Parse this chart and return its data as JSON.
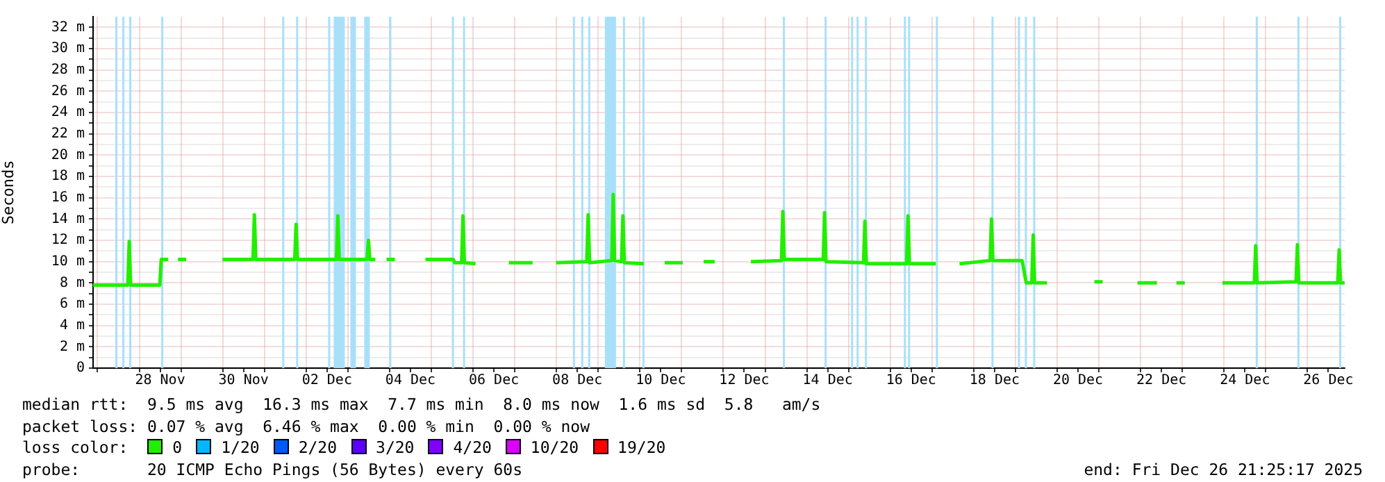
{
  "chart_data": {
    "type": "line",
    "ylabel": "Seconds",
    "xlim": [
      "--11-26T21:25",
      "--12-26T21:25"
    ],
    "ylim": [
      0,
      33
    ],
    "xticks": [
      {
        "value": "--11-27",
        "label": null
      },
      {
        "value": "--11-28",
        "label": null
      },
      {
        "value": "--11-28T12:00",
        "label": "28 Nov"
      },
      {
        "value": "--11-29",
        "label": null
      },
      {
        "value": "--11-30",
        "label": null
      },
      {
        "value": "--11-30T12:00",
        "label": "30 Nov"
      },
      {
        "value": "--12-01",
        "label": null
      },
      {
        "value": "--12-02",
        "label": null
      },
      {
        "value": "--12-02T12:00",
        "label": "02 Dec"
      },
      {
        "value": "--12-03",
        "label": null
      },
      {
        "value": "--12-04",
        "label": null
      },
      {
        "value": "--12-04T12:00",
        "label": "04 Dec"
      },
      {
        "value": "--12-05",
        "label": null
      },
      {
        "value": "--12-06",
        "label": null
      },
      {
        "value": "--12-06T12:00",
        "label": "06 Dec"
      },
      {
        "value": "--12-07",
        "label": null
      },
      {
        "value": "--12-08",
        "label": null
      },
      {
        "value": "--12-08T12:00",
        "label": "08 Dec"
      },
      {
        "value": "--12-09",
        "label": null
      },
      {
        "value": "--12-10",
        "label": null
      },
      {
        "value": "--12-10T12:00",
        "label": "10 Dec"
      },
      {
        "value": "--12-11",
        "label": null
      },
      {
        "value": "--12-12",
        "label": null
      },
      {
        "value": "--12-12T12:00",
        "label": "12 Dec"
      },
      {
        "value": "--12-13",
        "label": null
      },
      {
        "value": "--12-14",
        "label": null
      },
      {
        "value": "--12-14T12:00",
        "label": "14 Dec"
      },
      {
        "value": "--12-15",
        "label": null
      },
      {
        "value": "--12-16",
        "label": null
      },
      {
        "value": "--12-16T12:00",
        "label": "16 Dec"
      },
      {
        "value": "--12-17",
        "label": null
      },
      {
        "value": "--12-18",
        "label": null
      },
      {
        "value": "--12-18T12:00",
        "label": "18 Dec"
      },
      {
        "value": "--12-19",
        "label": null
      },
      {
        "value": "--12-20",
        "label": null
      },
      {
        "value": "--12-20T12:00",
        "label": "20 Dec"
      },
      {
        "value": "--12-21",
        "label": null
      },
      {
        "value": "--12-22",
        "label": null
      },
      {
        "value": "--12-22T12:00",
        "label": "22 Dec"
      },
      {
        "value": "--12-23",
        "label": null
      },
      {
        "value": "--12-24",
        "label": null
      },
      {
        "value": "--12-24T12:00",
        "label": "24 Dec"
      },
      {
        "value": "--12-25",
        "label": null
      },
      {
        "value": "--12-26",
        "label": null
      },
      {
        "value": "--12-26T12:00",
        "label": "26 Dec"
      }
    ],
    "yticks": [
      0,
      {
        "value": 1,
        "label": null
      },
      {
        "value": 2,
        "label": "2 m"
      },
      {
        "value": 3,
        "label": null
      },
      {
        "value": 4,
        "label": "4 m"
      },
      {
        "value": 5,
        "label": null
      },
      {
        "value": 6,
        "label": "6 m"
      },
      {
        "value": 7,
        "label": null
      },
      {
        "value": 8,
        "label": "8 m"
      },
      {
        "value": 9,
        "label": null
      },
      {
        "value": 10,
        "label": "10 m"
      },
      {
        "value": 11,
        "label": null
      },
      {
        "value": 12,
        "label": "12 m"
      },
      {
        "value": 13,
        "label": null
      },
      {
        "value": 14,
        "label": "14 m"
      },
      {
        "value": 15,
        "label": null
      },
      {
        "value": 16,
        "label": "16 m"
      },
      {
        "value": 17,
        "label": null
      },
      {
        "value": 18,
        "label": "18 m"
      },
      {
        "value": 19,
        "label": null
      },
      {
        "value": 20,
        "label": "20 m"
      },
      {
        "value": 21,
        "label": null
      },
      {
        "value": 22,
        "label": "22 m"
      },
      {
        "value": 23,
        "label": null
      },
      {
        "value": 24,
        "label": "24 m"
      },
      {
        "value": 25,
        "label": null
      },
      {
        "value": 26,
        "label": "26 m"
      },
      {
        "value": 27,
        "label": null
      },
      {
        "value": 28,
        "label": "28 m"
      },
      {
        "value": 29,
        "label": null
      },
      {
        "value": 30,
        "label": "30 m"
      },
      {
        "value": 31,
        "label": null
      },
      {
        "value": 32,
        "label": "32 m"
      }
    ],
    "grid": true,
    "legend": "bottom",
    "legend_title": "loss color:",
    "line_style": "solid",
    "marker": "none",
    "series": [
      {
        "name": "0",
        "color": "#22ee00",
        "x": [
          "--11-26T21:25",
          "--11-27T17:25",
          "--11-27T18:13",
          "--11-27T19:01",
          "--11-28T11:49",
          "--11-28T12:37",
          "--11-28T16:37",
          "--11-28T19:49",
          "--11-28T22:13",
          "--11-29T03:01",
          "--11-29T11:49",
          "--11-29T23:49",
          "--11-30T17:25",
          "--11-30T18:13",
          "--11-30T19:01",
          "--12-01T17:25",
          "--12-01T18:13",
          "--12-01T19:01",
          "--12-02T17:25",
          "--12-02T18:13",
          "--12-02T19:01",
          "--12-03T11:01",
          "--12-03T11:49",
          "--12-03T12:37",
          "--12-03T15:49",
          "--12-03T19:49",
          "--12-03T22:13",
          "--12-04T03:01",
          "--12-04T11:49",
          "--12-04T20:37",
          "--12-05T12:37",
          "--12-05T13:25",
          "--12-05T17:25",
          "--12-05T18:13",
          "--12-05T19:01",
          "--12-06T01:25",
          "--12-06T11:49",
          "--12-06T20:37",
          "--12-07T10:13",
          "--12-07T15:49",
          "--12-07T23:49",
          "--12-08T17:25",
          "--12-08T18:13",
          "--12-08T19:01",
          "--12-09T07:49",
          "--12-09T08:37",
          "--12-09T09:25",
          "--12-09T13:25",
          "--12-09T14:13",
          "--12-09T15:01",
          "--12-10T02:13",
          "--12-10T07:49",
          "--12-10T14:13",
          "--12-11T00:37",
          "--12-11T06:13",
          "--12-11T12:37",
          "--12-11T19:01",
          "--12-12T03:49",
          "--12-12T15:49",
          "--12-13T09:25",
          "--12-13T10:13",
          "--12-13T11:01",
          "--12-14T09:25",
          "--12-14T10:13",
          "--12-14T11:01",
          "--12-15T08:37",
          "--12-15T09:25",
          "--12-15T10:13",
          "--12-16T09:25",
          "--12-16T10:13",
          "--12-16T11:01",
          "--12-17T02:13",
          "--12-17T07:49",
          "--12-17T15:49",
          "--12-18T09:25",
          "--12-18T10:13",
          "--12-18T11:01",
          "--12-19T03:49",
          "--12-19T06:13",
          "--12-19T09:25",
          "--12-19T10:13",
          "--12-19T11:01",
          "--12-19T18:13",
          "--12-20T03:49",
          "--12-20T21:25",
          "--12-21T02:13",
          "--12-21T11:49",
          "--12-21T22:13",
          "--12-22T09:25",
          "--12-22T15:49",
          "--12-22T20:37",
          "--12-23T01:25",
          "--12-23T11:49",
          "--12-23T23:01",
          "--12-24T17:25",
          "--12-24T18:13",
          "--12-24T19:01",
          "--12-25T17:25",
          "--12-25T18:13",
          "--12-25T19:01",
          "--12-26T17:25",
          "--12-26T18:13",
          "--12-26T19:01",
          "--12-26T21:25"
        ],
        "values": [
          7.8,
          7.8,
          11.9,
          7.8,
          7.8,
          10.2,
          10.2,
          null,
          10.2,
          10.2,
          null,
          10.2,
          10.2,
          14.4,
          10.2,
          10.2,
          13.5,
          10.2,
          10.2,
          14.3,
          10.2,
          10.2,
          12,
          10.2,
          10.2,
          null,
          10.2,
          10.2,
          null,
          10.2,
          10.2,
          9.9,
          9.9,
          14.3,
          9.9,
          9.8,
          null,
          9.9,
          9.9,
          null,
          9.9,
          10,
          14.4,
          9.9,
          10.1,
          16.3,
          10.1,
          10,
          14.3,
          9.9,
          9.8,
          null,
          9.9,
          9.9,
          null,
          10,
          10,
          null,
          10,
          10.1,
          14.7,
          10.2,
          10.2,
          14.6,
          10,
          9.9,
          13.8,
          9.8,
          9.8,
          14.3,
          9.8,
          9.8,
          null,
          9.8,
          10.1,
          14,
          10.1,
          10.1,
          8,
          8,
          12.5,
          8,
          8,
          null,
          8.1,
          8.1,
          null,
          8,
          8,
          null,
          8,
          8,
          null,
          8,
          8,
          11.5,
          8,
          8.1,
          11.6,
          8,
          8,
          11.1,
          8,
          8
        ]
      },
      {
        "name": "1/20",
        "color": "#00b8ff"
      },
      {
        "name": "2/20",
        "color": "#0059ff"
      },
      {
        "name": "3/20",
        "color": "#5e00ff"
      },
      {
        "name": "4/20",
        "color": "#7e00ff"
      },
      {
        "name": "10/20",
        "color": "#dd00ff"
      },
      {
        "name": "19/20",
        "color": "#ff0000"
      }
    ],
    "bands": [
      {
        "axis": "x",
        "from": "--11-27T10:13",
        "to": "--11-27T11:01",
        "color": "#a8e0fa"
      },
      {
        "axis": "x",
        "from": "--11-27T14:13",
        "to": "--11-27T15:01",
        "color": "#a8e0fa"
      },
      {
        "axis": "x",
        "from": "--11-27T18:13",
        "to": "--11-27T19:01",
        "color": "#a8e0fa"
      },
      {
        "axis": "x",
        "from": "--11-28T12:37",
        "to": "--11-28T13:25",
        "color": "#a8e0fa"
      },
      {
        "axis": "x",
        "from": "--12-01T10:13",
        "to": "--12-01T11:01",
        "color": "#a8e0fa"
      },
      {
        "axis": "x",
        "from": "--12-01T18:13",
        "to": "--12-01T19:01",
        "color": "#a8e0fa"
      },
      {
        "axis": "x",
        "from": "--12-02T12:37",
        "to": "--12-02T13:25",
        "color": "#a8e0fa"
      },
      {
        "axis": "x",
        "from": "--12-02T15:49",
        "to": "--12-02T22:13",
        "color": "#a8e0fa"
      },
      {
        "axis": "x",
        "from": "--12-03T01:25",
        "to": "--12-03T04:37",
        "color": "#a8e0fa"
      },
      {
        "axis": "x",
        "from": "--12-03T09:25",
        "to": "--12-03T12:37",
        "color": "#a8e0fa"
      },
      {
        "axis": "x",
        "from": "--12-03T23:49",
        "to": "--12-04T00:37",
        "color": "#a8e0fa"
      },
      {
        "axis": "x",
        "from": "--12-05T11:49",
        "to": "--12-05T12:37",
        "color": "#a8e0fa"
      },
      {
        "axis": "x",
        "from": "--12-05T18:13",
        "to": "--12-05T19:01",
        "color": "#a8e0fa"
      },
      {
        "axis": "x",
        "from": "--12-08T09:25",
        "to": "--12-08T10:13",
        "color": "#a8e0fa"
      },
      {
        "axis": "x",
        "from": "--12-08T14:13",
        "to": "--12-08T15:01",
        "color": "#a8e0fa"
      },
      {
        "axis": "x",
        "from": "--12-08T18:13",
        "to": "--12-08T19:01",
        "color": "#a8e0fa"
      },
      {
        "axis": "x",
        "from": "--12-09T03:49",
        "to": "--12-09T10:13",
        "color": "#a8e0fa"
      },
      {
        "axis": "x",
        "from": "--12-09T14:13",
        "to": "--12-09T15:01",
        "color": "#a8e0fa"
      },
      {
        "axis": "x",
        "from": "--12-10T01:25",
        "to": "--12-10T02:13",
        "color": "#a8e0fa"
      },
      {
        "axis": "x",
        "from": "--12-13T10:13",
        "to": "--12-13T11:01",
        "color": "#a8e0fa"
      },
      {
        "axis": "x",
        "from": "--12-14T10:13",
        "to": "--12-14T11:01",
        "color": "#a8e0fa"
      },
      {
        "axis": "x",
        "from": "--12-15T01:25",
        "to": "--12-15T02:13",
        "color": "#a8e0fa"
      },
      {
        "axis": "x",
        "from": "--12-15T04:37",
        "to": "--12-15T05:25",
        "color": "#a8e0fa"
      },
      {
        "axis": "x",
        "from": "--12-15T09:25",
        "to": "--12-15T10:13",
        "color": "#a8e0fa"
      },
      {
        "axis": "x",
        "from": "--12-16T07:49",
        "to": "--12-16T08:37",
        "color": "#a8e0fa"
      },
      {
        "axis": "x",
        "from": "--12-16T10:13",
        "to": "--12-16T11:01",
        "color": "#a8e0fa"
      },
      {
        "axis": "x",
        "from": "--12-17T02:13",
        "to": "--12-17T03:01",
        "color": "#a8e0fa"
      },
      {
        "axis": "x",
        "from": "--12-18T10:13",
        "to": "--12-18T11:01",
        "color": "#a8e0fa"
      },
      {
        "axis": "x",
        "from": "--12-19T01:25",
        "to": "--12-19T02:13",
        "color": "#a8e0fa"
      },
      {
        "axis": "x",
        "from": "--12-19T05:25",
        "to": "--12-19T06:13",
        "color": "#a8e0fa"
      },
      {
        "axis": "x",
        "from": "--12-19T10:13",
        "to": "--12-19T11:01",
        "color": "#a8e0fa"
      },
      {
        "axis": "x",
        "from": "--12-24T18:13",
        "to": "--12-24T19:01",
        "color": "#a8e0fa"
      },
      {
        "axis": "x",
        "from": "--12-25T18:13",
        "to": "--12-25T19:01",
        "color": "#a8e0fa"
      },
      {
        "axis": "x",
        "from": "--12-26T18:13",
        "to": "--12-26T19:01",
        "color": "#a8e0fa"
      }
    ],
    "annotations": [
      "median rtt:  9.5 ms avg  16.3 ms max  7.7 ms min  8.0 ms now  1.6 ms sd  5.8   am/s",
      "packet loss: 0.07 % avg  6.46 % max  0.00 % min  0.00 % now",
      "probe:       20 ICMP Echo Pings (56 Bytes) every 60s",
      "end: Fri Dec 26 21:25:17 2025"
    ]
  }
}
